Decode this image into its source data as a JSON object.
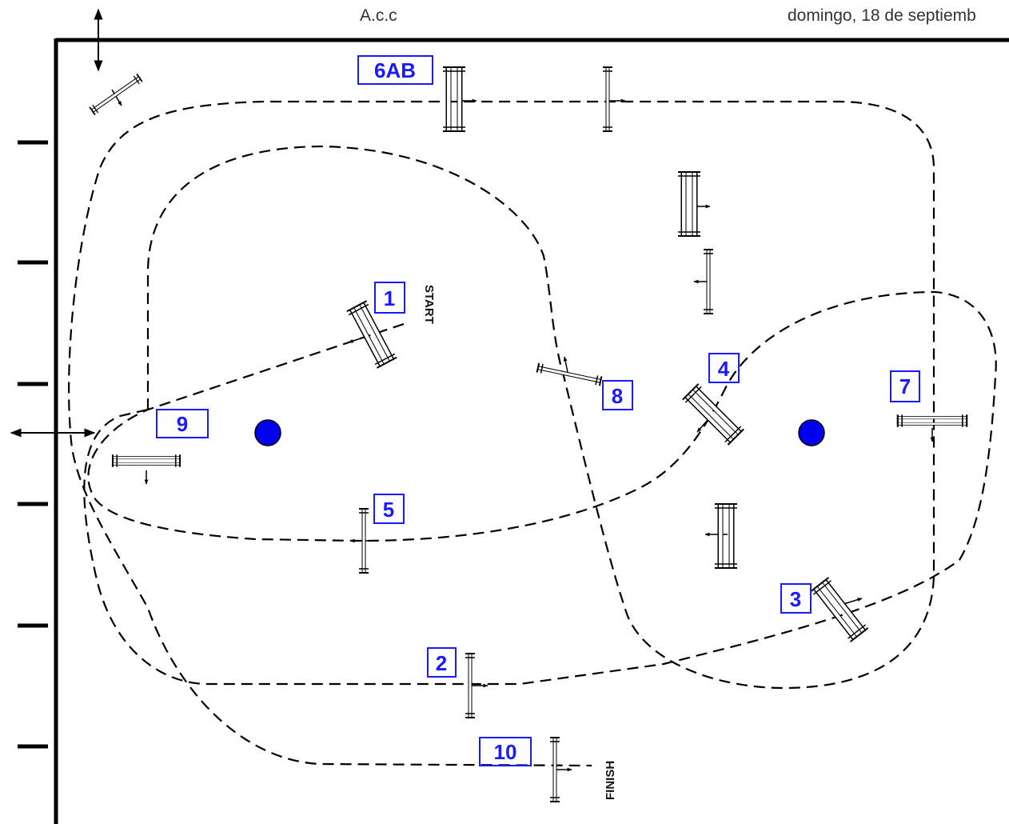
{
  "header": {
    "left_text": "A.c.c",
    "right_text": "domingo, 18 de septiemb"
  },
  "course": {
    "start_label": "START",
    "finish_label": "FINISH",
    "obstacle_numbers": [
      "1",
      "2",
      "3",
      "4",
      "5",
      "6AB",
      "7",
      "8",
      "9",
      "10"
    ]
  },
  "colors": {
    "number_text": "#1a1aff",
    "number_box": "#1a1aff",
    "marker_fill": "#0000ee",
    "path": "#000000"
  }
}
